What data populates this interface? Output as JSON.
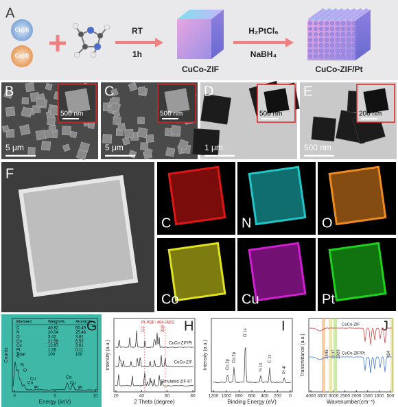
{
  "panel_a": {
    "label": "A",
    "reactants": [
      "Cu(II)",
      "Co(II)"
    ],
    "step1": {
      "top": "RT",
      "bottom": "1h"
    },
    "product1": "CuCo-ZIF",
    "step2": {
      "top": "H₂PtCl₆",
      "bottom": "NaBH₄"
    },
    "product2": "CuCo-ZIF/Pt"
  },
  "micrographs": [
    {
      "label": "B",
      "scale": "5 μm",
      "inset_scale": "500 nm"
    },
    {
      "label": "C",
      "scale": "5 μm",
      "inset_scale": "500 nm"
    },
    {
      "label": "D",
      "scale": "1 μm",
      "inset_scale": "500 nm"
    },
    {
      "label": "E",
      "scale": "500 nm",
      "inset_scale": "200 nm"
    }
  ],
  "mapping": {
    "label": "F",
    "elements": [
      "C",
      "N",
      "O",
      "Co",
      "Cu",
      "Pt"
    ]
  },
  "panel_g": {
    "label": "G",
    "table": {
      "header": [
        "Element",
        "Weight%",
        "Atomic%"
      ],
      "rows": [
        [
          "C",
          40.82,
          60.49
        ],
        [
          "N",
          20.04,
          25.46
        ],
        [
          "O",
          3.42,
          3.81
        ],
        [
          "Co",
          21.59,
          6.52
        ],
        [
          "Cu",
          12.87,
          3.61
        ],
        [
          "Pt",
          1.26,
          0.11
        ],
        [
          "Total",
          100,
          100
        ]
      ]
    },
    "y_label": "Counts",
    "x_label": "Energy (keV)",
    "xticks": [
      0,
      5,
      10
    ],
    "peaks": [
      "C",
      "N",
      "O",
      "Co",
      "Cu",
      "Pt",
      "Co",
      "Cu",
      "Pt"
    ]
  },
  "panel_h": {
    "label": "H",
    "y_label": "Intensity (a.u.)",
    "x_label": "2 Theta (degree)",
    "xticks": [
      20,
      40,
      60,
      80
    ],
    "reference": "Pt  PDF: 404-0802",
    "peaks": [
      "111",
      "200"
    ],
    "traces": [
      "CuCo-ZIF/Pt",
      "CuCo-ZIF",
      "Simulated ZIF-67"
    ]
  },
  "panel_i": {
    "label": "I",
    "y_label": "Intensity (a.u.)",
    "x_label": "Binding Energy (eV)",
    "xticks": [
      1200,
      1000,
      800,
      600,
      400,
      200,
      0
    ],
    "peaks": [
      "Cu 2p",
      "Co 2p",
      "O 1s",
      "N 1s",
      "C 1s",
      "Pt 4f"
    ]
  },
  "panel_j": {
    "label": "J",
    "y_label": "Transmittance (a.u.)",
    "x_label": "Wavenumber(cm⁻¹)",
    "xticks": [
      4000,
      3500,
      3000,
      2500,
      2000,
      1500,
      1000,
      500
    ],
    "bands": [
      3445,
      3137,
      2929,
      424
    ],
    "traces": [
      "CuCo-ZIF",
      "CuCo-ZIF/Pt"
    ]
  }
}
